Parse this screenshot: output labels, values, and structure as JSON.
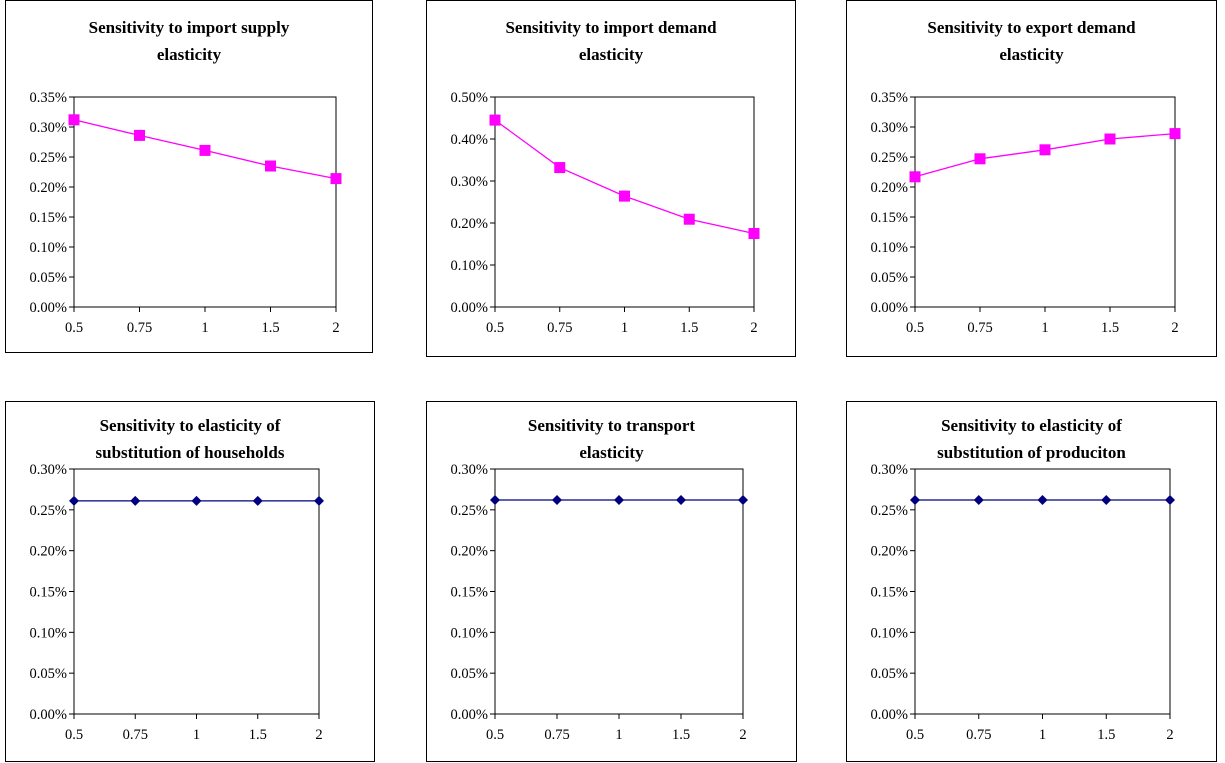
{
  "chart_data": [
    {
      "type": "line",
      "title_lines": [
        "Sensitivity to import supply",
        "elasticity"
      ],
      "categories": [
        "0.5",
        "0.75",
        "1",
        "1.5",
        "2"
      ],
      "series": [
        {
          "values": [
            0.312,
            0.286,
            0.261,
            0.235,
            0.214
          ],
          "color": "#ff00ff",
          "marker": "square"
        }
      ],
      "y_ticks": [
        "0.00%",
        "0.05%",
        "0.10%",
        "0.15%",
        "0.20%",
        "0.25%",
        "0.30%",
        "0.35%"
      ],
      "ylim": [
        0,
        0.35
      ],
      "grid": false
    },
    {
      "type": "line",
      "title_lines": [
        "Sensitivity to import demand",
        "elasticity"
      ],
      "categories": [
        "0.5",
        "0.75",
        "1",
        "1.5",
        "2"
      ],
      "series": [
        {
          "values": [
            0.445,
            0.332,
            0.264,
            0.209,
            0.175
          ],
          "color": "#ff00ff",
          "marker": "square"
        }
      ],
      "y_ticks": [
        "0.00%",
        "0.10%",
        "0.20%",
        "0.30%",
        "0.40%",
        "0.50%"
      ],
      "ylim": [
        0,
        0.5
      ],
      "grid": false
    },
    {
      "type": "line",
      "title_lines": [
        "Sensitivity to export demand",
        "elasticity"
      ],
      "categories": [
        "0.5",
        "0.75",
        "1",
        "1.5",
        "2"
      ],
      "series": [
        {
          "values": [
            0.217,
            0.247,
            0.262,
            0.28,
            0.289
          ],
          "color": "#ff00ff",
          "marker": "square"
        }
      ],
      "y_ticks": [
        "0.00%",
        "0.05%",
        "0.10%",
        "0.15%",
        "0.20%",
        "0.25%",
        "0.30%",
        "0.35%"
      ],
      "ylim": [
        0,
        0.35
      ],
      "grid": false
    },
    {
      "type": "line",
      "title_lines": [
        "Sensitivity to elasticity of",
        "substitution of households"
      ],
      "categories": [
        "0.5",
        "0.75",
        "1",
        "1.5",
        "2"
      ],
      "series": [
        {
          "values": [
            0.261,
            0.261,
            0.261,
            0.261,
            0.261
          ],
          "color": "#000080",
          "marker": "diamond"
        }
      ],
      "y_ticks": [
        "0.00%",
        "0.05%",
        "0.10%",
        "0.15%",
        "0.20%",
        "0.25%",
        "0.30%"
      ],
      "ylim": [
        0,
        0.3
      ],
      "grid": false
    },
    {
      "type": "line",
      "title_lines": [
        "Sensitivity to transport",
        "elasticity"
      ],
      "categories": [
        "0.5",
        "0.75",
        "1",
        "1.5",
        "2"
      ],
      "series": [
        {
          "values": [
            0.262,
            0.262,
            0.262,
            0.262,
            0.262
          ],
          "color": "#000080",
          "marker": "diamond"
        }
      ],
      "y_ticks": [
        "0.00%",
        "0.05%",
        "0.10%",
        "0.15%",
        "0.20%",
        "0.25%",
        "0.30%"
      ],
      "ylim": [
        0,
        0.3
      ],
      "grid": false
    },
    {
      "type": "line",
      "title_lines": [
        "Sensitivity to elasticity of",
        "substitution of produciton"
      ],
      "categories": [
        "0.5",
        "0.75",
        "1",
        "1.5",
        "2"
      ],
      "series": [
        {
          "values": [
            0.262,
            0.262,
            0.262,
            0.262,
            0.262
          ],
          "color": "#000080",
          "marker": "diamond"
        }
      ],
      "y_ticks": [
        "0.00%",
        "0.05%",
        "0.10%",
        "0.15%",
        "0.20%",
        "0.25%",
        "0.30%"
      ],
      "ylim": [
        0,
        0.3
      ],
      "grid": false
    }
  ]
}
